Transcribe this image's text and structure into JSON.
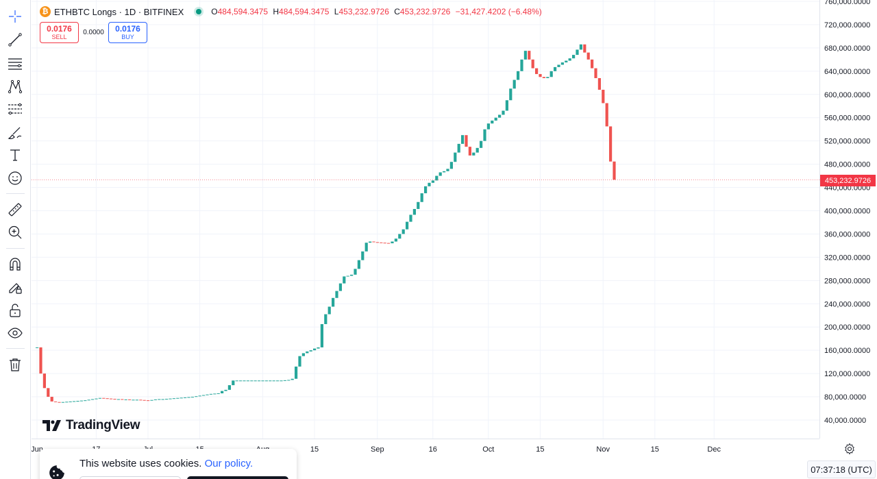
{
  "legend": {
    "coin_glyph": "₿",
    "symbol": "ETHBTC Longs · 1D · BITFINEX",
    "o_label": "O",
    "o_value": "484,594.3475",
    "h_label": "H",
    "h_value": "484,594.3475",
    "l_label": "L",
    "l_value": "453,232.9726",
    "c_label": "C",
    "c_value": "453,232.9726",
    "change": "−31,427.4202 (−6.48%)"
  },
  "trade": {
    "sell_price": "0.0176",
    "sell_label": "SELL",
    "spread": "0.0000",
    "buy_price": "0.0176",
    "buy_label": "BUY"
  },
  "brand": "TradingView",
  "last_price": "453,232.9726",
  "clock": "07:37:18 (UTC)",
  "cookie": {
    "text": "This website uses cookies.",
    "link": "Our policy."
  },
  "toolbar": [
    "crosshair-icon",
    "trend-line-icon",
    "horizontal-lines-icon",
    "pattern-icon",
    "fib-icon",
    "brush-icon",
    "text-icon",
    "emoji-icon",
    "ruler-icon",
    "zoom-in-icon",
    "magnet-icon",
    "lock-draw-icon",
    "unlock-icon",
    "eye-icon",
    "trash-icon"
  ],
  "colors": {
    "up": "#26a69a",
    "down": "#ef5350",
    "accent": "#2962ff",
    "last_price": "#f23645"
  },
  "chart_data": {
    "type": "candlestick",
    "yticks": [
      "40,000.0000",
      "80,000.0000",
      "120,000.0000",
      "160,000.0000",
      "200,000.0000",
      "240,000.0000",
      "280,000.0000",
      "320,000.0000",
      "360,000.0000",
      "400,000.0000",
      "440,000.0000",
      "480,000.0000",
      "520,000.0000",
      "560,000.0000",
      "600,000.0000",
      "640,000.0000",
      "680,000.0000",
      "720,000.0000",
      "760,000.0000"
    ],
    "ylim": [
      0,
      760000
    ],
    "xticks": [
      {
        "label": "Jun",
        "day": 0
      },
      {
        "label": "17",
        "day": 16
      },
      {
        "label": "Jul",
        "day": 30
      },
      {
        "label": "15",
        "day": 44
      },
      {
        "label": "Aug",
        "day": 61
      },
      {
        "label": "15",
        "day": 75
      },
      {
        "label": "Sep",
        "day": 92
      },
      {
        "label": "16",
        "day": 107
      },
      {
        "label": "Oct",
        "day": 122
      },
      {
        "label": "15",
        "day": 136
      },
      {
        "label": "Nov",
        "day": 153
      },
      {
        "label": "15",
        "day": 167
      },
      {
        "label": "Dec",
        "day": 183
      }
    ],
    "start_close": 165000,
    "closes": [
      165000,
      120000,
      95000,
      80000,
      72000,
      71000,
      70500,
      71000,
      71500,
      72000,
      72500,
      73000,
      73500,
      74000,
      75000,
      76000,
      77000,
      78000,
      77500,
      77000,
      76500,
      76000,
      76000,
      75500,
      75500,
      75000,
      75000,
      75000,
      74500,
      74000,
      73500,
      74500,
      75500,
      76000,
      76000,
      76500,
      77000,
      77500,
      78000,
      78500,
      79000,
      79500,
      80000,
      81000,
      82000,
      83000,
      84000,
      85000,
      85500,
      86000,
      90000,
      92000,
      100000,
      108000,
      108000,
      108000,
      108000,
      108000,
      108000,
      108000,
      108000,
      108000,
      108000,
      108000,
      108000,
      108000,
      108000,
      108500,
      109000,
      111000,
      132000,
      150000,
      155000,
      158000,
      160000,
      163000,
      165000,
      205000,
      222000,
      235000,
      250000,
      262000,
      275000,
      287000,
      288000,
      290000,
      300000,
      315000,
      330000,
      345000,
      347000,
      346000,
      345500,
      345000,
      344500,
      344000,
      347000,
      352000,
      360000,
      368000,
      381000,
      393000,
      403000,
      415000,
      430000,
      442000,
      448000,
      452000,
      460000,
      466000,
      468000,
      472000,
      484000,
      500000,
      515000,
      530000,
      510000,
      495000,
      500000,
      508000,
      520000,
      540000,
      550000,
      555000,
      560000,
      565000,
      572000,
      590000,
      610000,
      625000,
      640000,
      660000,
      675000,
      660000,
      645000,
      635000,
      630000,
      628000,
      630000,
      640000,
      647000,
      651000,
      655000,
      658000,
      662000,
      668000,
      677000,
      686000,
      672000,
      660000,
      645000,
      628000,
      608000,
      585000,
      545000,
      484594,
      453233
    ]
  }
}
